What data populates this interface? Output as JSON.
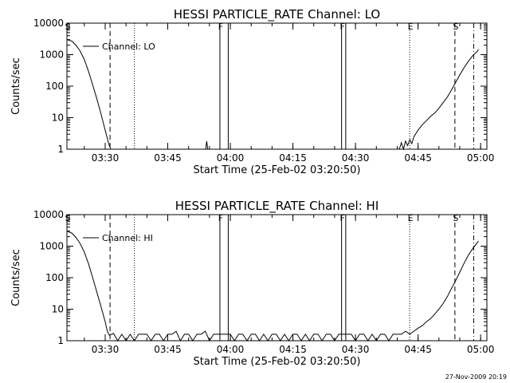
{
  "chart_data": [
    {
      "type": "line",
      "title": "HESSI PARTICLE_RATE Channel: LO",
      "xlabel": "Start Time (25-Feb-02 03:20:50)",
      "ylabel": "Counts/sec",
      "y_scale": "log",
      "ylim": [
        1,
        10000
      ],
      "xlim": [
        "03:20:50",
        "05:01:30"
      ],
      "xticks": [
        "03:30",
        "03:45",
        "04:00",
        "04:15",
        "04:30",
        "04:45",
        "05:00"
      ],
      "yticks": [
        "1",
        "10",
        "100",
        "1000",
        "10000"
      ],
      "legend": {
        "label": "Channel: LO",
        "position": "top-left"
      },
      "series": [
        {
          "name": "Channel: LO",
          "points": [
            [
              "03:20:50",
              3000
            ],
            [
              "03:22:00",
              2700
            ],
            [
              "03:23:00",
              2000
            ],
            [
              "03:24:00",
              1300
            ],
            [
              "03:25:00",
              700
            ],
            [
              "03:26:00",
              300
            ],
            [
              "03:27:00",
              110
            ],
            [
              "03:28:00",
              40
            ],
            [
              "03:29:00",
              13
            ],
            [
              "03:30:00",
              4
            ],
            [
              "03:30:50",
              1.5
            ],
            [
              "03:31:20",
              1
            ],
            [
              "03:54:05",
              1
            ],
            [
              "03:54:20",
              1.8
            ],
            [
              "03:54:35",
              1
            ],
            [
              "04:40:30",
              1
            ],
            [
              "04:41:00",
              1.6
            ],
            [
              "04:41:30",
              1
            ],
            [
              "04:42:00",
              1.8
            ],
            [
              "04:42:30",
              1.3
            ],
            [
              "04:43:00",
              2
            ],
            [
              "04:43:30",
              1.5
            ],
            [
              "04:44:00",
              2.5
            ],
            [
              "04:45:00",
              4
            ],
            [
              "04:46:00",
              6
            ],
            [
              "04:47:00",
              8
            ],
            [
              "04:48:00",
              11
            ],
            [
              "04:49:00",
              14
            ],
            [
              "04:50:00",
              20
            ],
            [
              "04:51:00",
              30
            ],
            [
              "04:52:00",
              45
            ],
            [
              "04:53:00",
              75
            ],
            [
              "04:54:00",
              130
            ],
            [
              "04:55:00",
              230
            ],
            [
              "04:56:00",
              380
            ],
            [
              "04:57:00",
              600
            ],
            [
              "04:58:00",
              900
            ],
            [
              "04:59:00",
              1200
            ],
            [
              "04:59:30",
              1450
            ]
          ]
        }
      ],
      "markers": [
        {
          "time": "03:20:50",
          "style": "solid",
          "label": "S"
        },
        {
          "time": "03:31:10",
          "style": "dashed",
          "label": ""
        },
        {
          "time": "03:37:00",
          "style": "dotted",
          "label": ""
        },
        {
          "time": "03:57:30",
          "style": "solid",
          "label": "F"
        },
        {
          "time": "03:59:30",
          "style": "solid",
          "label": ""
        },
        {
          "time": "04:26:40",
          "style": "solid",
          "label": "F"
        },
        {
          "time": "04:27:40",
          "style": "solid",
          "label": ""
        },
        {
          "time": "04:43:00",
          "style": "dotted",
          "label": "E"
        },
        {
          "time": "04:53:50",
          "style": "dashed",
          "label": "S"
        },
        {
          "time": "04:58:20",
          "style": "dashdot",
          "label": ""
        }
      ]
    },
    {
      "type": "line",
      "title": "HESSI PARTICLE_RATE Channel: HI",
      "xlabel": "Start Time (25-Feb-02 03:20:50)",
      "ylabel": "Counts/sec",
      "y_scale": "log",
      "ylim": [
        1,
        10000
      ],
      "xlim": [
        "03:20:50",
        "05:01:30"
      ],
      "xticks": [
        "03:30",
        "03:45",
        "04:00",
        "04:15",
        "04:30",
        "04:45",
        "05:00"
      ],
      "yticks": [
        "1",
        "10",
        "100",
        "1000",
        "10000"
      ],
      "legend": {
        "label": "Channel: HI",
        "position": "top-left"
      },
      "series": [
        {
          "name": "Channel: HI",
          "points": [
            [
              "03:20:50",
              3000
            ],
            [
              "03:22:00",
              2600
            ],
            [
              "03:23:00",
              1900
            ],
            [
              "03:24:00",
              1200
            ],
            [
              "03:25:00",
              650
            ],
            [
              "03:26:00",
              280
            ],
            [
              "03:27:00",
              100
            ],
            [
              "03:28:00",
              35
            ],
            [
              "03:29:00",
              12
            ],
            [
              "03:30:00",
              4
            ],
            [
              "03:30:30",
              2
            ],
            [
              "03:31:00",
              1.5
            ],
            [
              "03:32:00",
              1.7
            ],
            [
              "03:33:00",
              1
            ],
            [
              "03:34:00",
              1.6
            ],
            [
              "03:35:00",
              1
            ],
            [
              "03:36:00",
              1.6
            ],
            [
              "03:37:00",
              1
            ],
            [
              "03:38:00",
              1.6
            ],
            [
              "03:39:00",
              1.6
            ],
            [
              "03:40:00",
              1.6
            ],
            [
              "03:41:00",
              1
            ],
            [
              "03:42:00",
              1.6
            ],
            [
              "03:43:00",
              1.6
            ],
            [
              "03:44:00",
              1
            ],
            [
              "03:45:00",
              1.6
            ],
            [
              "03:46:00",
              1.6
            ],
            [
              "03:47:00",
              2
            ],
            [
              "03:48:00",
              1
            ],
            [
              "03:49:00",
              1.6
            ],
            [
              "03:50:00",
              1.6
            ],
            [
              "03:51:00",
              1
            ],
            [
              "03:52:00",
              1.6
            ],
            [
              "03:53:00",
              1.6
            ],
            [
              "03:54:00",
              2
            ],
            [
              "03:55:00",
              1
            ],
            [
              "03:56:00",
              1.6
            ],
            [
              "03:57:00",
              1.6
            ],
            [
              "04:00:00",
              1.6
            ],
            [
              "04:01:00",
              1
            ],
            [
              "04:02:00",
              1.6
            ],
            [
              "04:03:00",
              1.6
            ],
            [
              "04:04:00",
              1
            ],
            [
              "04:05:00",
              1.6
            ],
            [
              "04:06:00",
              1.6
            ],
            [
              "04:07:00",
              1
            ],
            [
              "04:08:00",
              1.6
            ],
            [
              "04:09:00",
              1
            ],
            [
              "04:10:00",
              1.6
            ],
            [
              "04:11:00",
              1.6
            ],
            [
              "04:12:00",
              1
            ],
            [
              "04:13:00",
              1.6
            ],
            [
              "04:14:00",
              1
            ],
            [
              "04:15:00",
              1.6
            ],
            [
              "04:16:00",
              1.6
            ],
            [
              "04:17:00",
              1
            ],
            [
              "04:18:00",
              1.6
            ],
            [
              "04:19:00",
              1
            ],
            [
              "04:20:00",
              1.6
            ],
            [
              "04:21:00",
              1.6
            ],
            [
              "04:22:00",
              1
            ],
            [
              "04:23:00",
              1.6
            ],
            [
              "04:24:00",
              1.6
            ],
            [
              "04:25:00",
              1
            ],
            [
              "04:26:00",
              1.6
            ],
            [
              "04:29:00",
              1.6
            ],
            [
              "04:30:00",
              1
            ],
            [
              "04:31:00",
              1.6
            ],
            [
              "04:32:00",
              1.6
            ],
            [
              "04:33:00",
              1
            ],
            [
              "04:34:00",
              1.6
            ],
            [
              "04:35:00",
              1
            ],
            [
              "04:36:00",
              1.6
            ],
            [
              "04:37:00",
              1.6
            ],
            [
              "04:38:00",
              1
            ],
            [
              "04:39:00",
              1.6
            ],
            [
              "04:40:00",
              1.6
            ],
            [
              "04:41:00",
              1.6
            ],
            [
              "04:42:00",
              2
            ],
            [
              "04:43:00",
              1.6
            ],
            [
              "04:44:00",
              2
            ],
            [
              "04:45:00",
              2.5
            ],
            [
              "04:46:00",
              3
            ],
            [
              "04:47:00",
              4
            ],
            [
              "04:48:00",
              5
            ],
            [
              "04:49:00",
              7
            ],
            [
              "04:50:00",
              10
            ],
            [
              "04:51:00",
              15
            ],
            [
              "04:52:00",
              25
            ],
            [
              "04:53:00",
              45
            ],
            [
              "04:54:00",
              80
            ],
            [
              "04:55:00",
              150
            ],
            [
              "04:56:00",
              280
            ],
            [
              "04:57:00",
              500
            ],
            [
              "04:58:00",
              800
            ],
            [
              "04:59:00",
              1200
            ],
            [
              "04:59:30",
              1450
            ]
          ]
        }
      ],
      "markers": [
        {
          "time": "03:20:50",
          "style": "solid",
          "label": "S"
        },
        {
          "time": "03:31:10",
          "style": "dashed",
          "label": ""
        },
        {
          "time": "03:37:00",
          "style": "dotted",
          "label": ""
        },
        {
          "time": "03:57:30",
          "style": "solid",
          "label": "F"
        },
        {
          "time": "03:59:30",
          "style": "solid",
          "label": ""
        },
        {
          "time": "04:26:40",
          "style": "solid",
          "label": "F"
        },
        {
          "time": "04:27:40",
          "style": "solid",
          "label": ""
        },
        {
          "time": "04:43:00",
          "style": "dotted",
          "label": "E"
        },
        {
          "time": "04:53:50",
          "style": "dashed",
          "label": "S"
        },
        {
          "time": "04:58:20",
          "style": "dashdot",
          "label": ""
        }
      ]
    }
  ],
  "footer": {
    "timestamp": "27-Nov-2009 20:19"
  }
}
